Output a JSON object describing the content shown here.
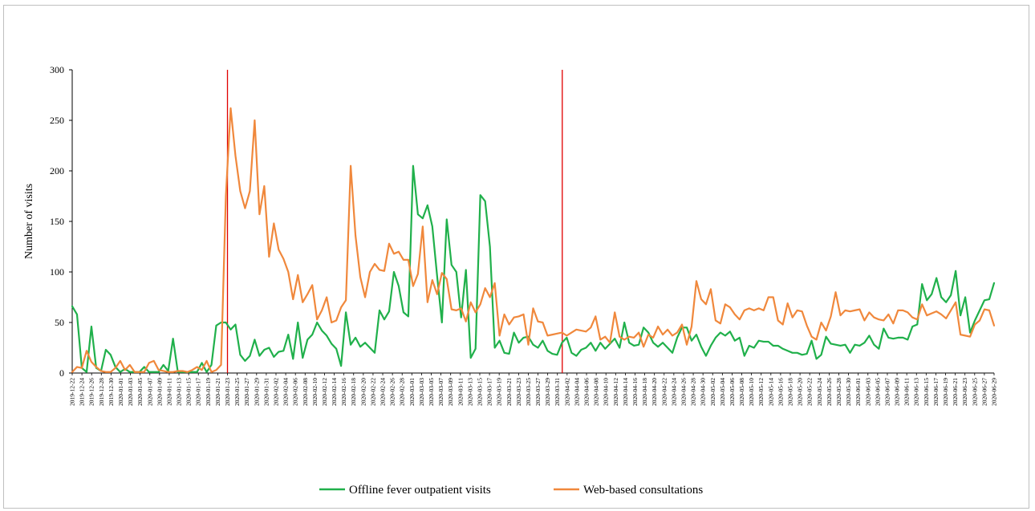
{
  "chart_data": {
    "type": "line",
    "title": "",
    "xlabel": "",
    "ylabel": "Number of visits",
    "ylim": [
      0,
      300
    ],
    "yticks": [
      0,
      50,
      100,
      150,
      200,
      250,
      300
    ],
    "grid": false,
    "legend_position": "bottom",
    "start_date": "2019-12-22",
    "end_date": "2020-06-29",
    "tick_labels": [
      "2019-12-22",
      "2019-12-24",
      "2019-12-26",
      "2019-12-28",
      "2019-12-30",
      "2020-01-01",
      "2020-01-03",
      "2020-01-05",
      "2020-01-07",
      "2020-01-09",
      "2020-01-11",
      "2020-01-13",
      "2020-01-15",
      "2020-01-17",
      "2020-01-19",
      "2020-01-21",
      "2020-01-23",
      "2020-01-25",
      "2020-01-27",
      "2020-01-29",
      "2020-01-31",
      "2020-02-02",
      "2020-02-04",
      "2020-02-06",
      "2020-02-08",
      "2020-02-10",
      "2020-02-12",
      "2020-02-14",
      "2020-02-16",
      "2020-02-18",
      "2020-02-20",
      "2020-02-22",
      "2020-02-24",
      "2020-02-26",
      "2020-02-28",
      "2020-03-01",
      "2020-03-03",
      "2020-03-05",
      "2020-03-07",
      "2020-03-09",
      "2020-03-11",
      "2020-03-13",
      "2020-03-15",
      "2020-03-17",
      "2020-03-19",
      "2020-03-21",
      "2020-03-23",
      "2020-03-25",
      "2020-03-27",
      "2020-03-29",
      "2020-03-31",
      "2020-04-02",
      "2020-04-04",
      "2020-04-06",
      "2020-04-08",
      "2020-04-10",
      "2020-04-12",
      "2020-04-14",
      "2020-04-16",
      "2020-04-18",
      "2020-04-20",
      "2020-04-22",
      "2020-04-24",
      "2020-04-26",
      "2020-04-28",
      "2020-04-30",
      "2020-05-02",
      "2020-05-04",
      "2020-05-06",
      "2020-05-08",
      "2020-05-10",
      "2020-05-12",
      "2020-05-14",
      "2020-05-16",
      "2020-05-18",
      "2020-05-20",
      "2020-05-22",
      "2020-05-24",
      "2020-05-26",
      "2020-05-28",
      "2020-05-30",
      "2020-06-01",
      "2020-06-03",
      "2020-06-05",
      "2020-06-07",
      "2020-06-09",
      "2020-06-11",
      "2020-06-13",
      "2020-06-15",
      "2020-06-17",
      "2020-06-19",
      "2020-06-21",
      "2020-06-23",
      "2020-06-25",
      "2020-06-27",
      "2020-06-29"
    ],
    "vertical_markers": [
      {
        "date": "2020-01-23",
        "color": "#e00000"
      },
      {
        "date": "2020-04-01",
        "color": "#e00000"
      }
    ],
    "series": [
      {
        "name": "Offline fever outpatient visits",
        "color": "#20b04b",
        "values": [
          66,
          58,
          5,
          1,
          46,
          5,
          2,
          23,
          18,
          6,
          1,
          4,
          1,
          1,
          1,
          6,
          1,
          1,
          1,
          8,
          2,
          34,
          1,
          1,
          1,
          1,
          1,
          10,
          1,
          8,
          47,
          50,
          50,
          43,
          48,
          18,
          12,
          17,
          33,
          17,
          23,
          25,
          16,
          21,
          22,
          38,
          14,
          50,
          15,
          33,
          38,
          50,
          42,
          37,
          29,
          24,
          7,
          60,
          28,
          35,
          26,
          30,
          25,
          20,
          62,
          53,
          61,
          100,
          86,
          60,
          56,
          205,
          157,
          153,
          166,
          145,
          96,
          50,
          152,
          107,
          100,
          55,
          102,
          15,
          24,
          176,
          170,
          125,
          25,
          32,
          20,
          19,
          40,
          30,
          35,
          36,
          28,
          25,
          32,
          22,
          19,
          18,
          30,
          35,
          20,
          17,
          23,
          25,
          30,
          22,
          30,
          24,
          29,
          34,
          25,
          50,
          30,
          27,
          28,
          45,
          40,
          30,
          26,
          30,
          25,
          20,
          35,
          45,
          45,
          32,
          38,
          26,
          17,
          27,
          35,
          40,
          37,
          41,
          32,
          35,
          17,
          27,
          25,
          32,
          31,
          31,
          27,
          27,
          24,
          22,
          20,
          20,
          18,
          19,
          32,
          14,
          18,
          36,
          29,
          28,
          27,
          28,
          20,
          28,
          27,
          30,
          37,
          28,
          24,
          44,
          35,
          34,
          35,
          35,
          33,
          46,
          48,
          88,
          72,
          78,
          94,
          75,
          70,
          77,
          101,
          57,
          75,
          40,
          52,
          62,
          72,
          73,
          89
        ],
        "_len_note": ""
      },
      {
        "name": "Web-based consultations",
        "color": "#f0883c",
        "values": [
          1,
          6,
          5,
          22,
          11,
          6,
          2,
          1,
          1,
          5,
          12,
          3,
          8,
          1,
          1,
          1,
          10,
          12,
          3,
          2,
          1,
          1,
          2,
          2,
          1,
          3,
          6,
          3,
          12,
          1,
          3,
          8,
          175,
          262,
          215,
          180,
          163,
          180,
          250,
          157,
          185,
          115,
          148,
          122,
          113,
          100,
          73,
          97,
          70,
          78,
          87,
          53,
          62,
          75,
          50,
          52,
          65,
          72,
          205,
          136,
          95,
          75,
          100,
          108,
          102,
          101,
          128,
          118,
          120,
          112,
          112,
          86,
          98,
          145,
          70,
          92,
          78,
          99,
          93,
          63,
          62,
          64,
          51,
          70,
          60,
          68,
          84,
          75,
          89,
          37,
          58,
          48,
          55,
          56,
          58,
          28,
          64,
          51,
          50,
          37,
          38,
          39,
          40,
          37,
          40,
          43,
          42,
          41,
          45,
          56,
          33,
          36,
          30,
          60,
          36,
          33,
          36,
          35,
          40,
          26,
          38,
          35,
          46,
          38,
          43,
          37,
          40,
          48,
          28,
          46,
          91,
          73,
          68,
          83,
          52,
          49,
          68,
          65,
          58,
          53,
          62,
          64,
          62,
          64,
          62,
          75,
          75,
          52,
          48,
          69,
          55,
          62,
          61,
          47,
          36,
          33,
          50,
          42,
          56,
          80,
          57,
          62,
          61,
          62,
          63,
          52,
          60,
          55,
          53,
          52,
          58,
          49,
          62,
          62,
          60,
          55,
          53,
          68,
          57,
          59,
          61,
          58,
          54,
          62,
          70,
          38,
          37,
          36,
          48,
          52,
          63,
          62,
          47
        ]
      }
    ]
  }
}
